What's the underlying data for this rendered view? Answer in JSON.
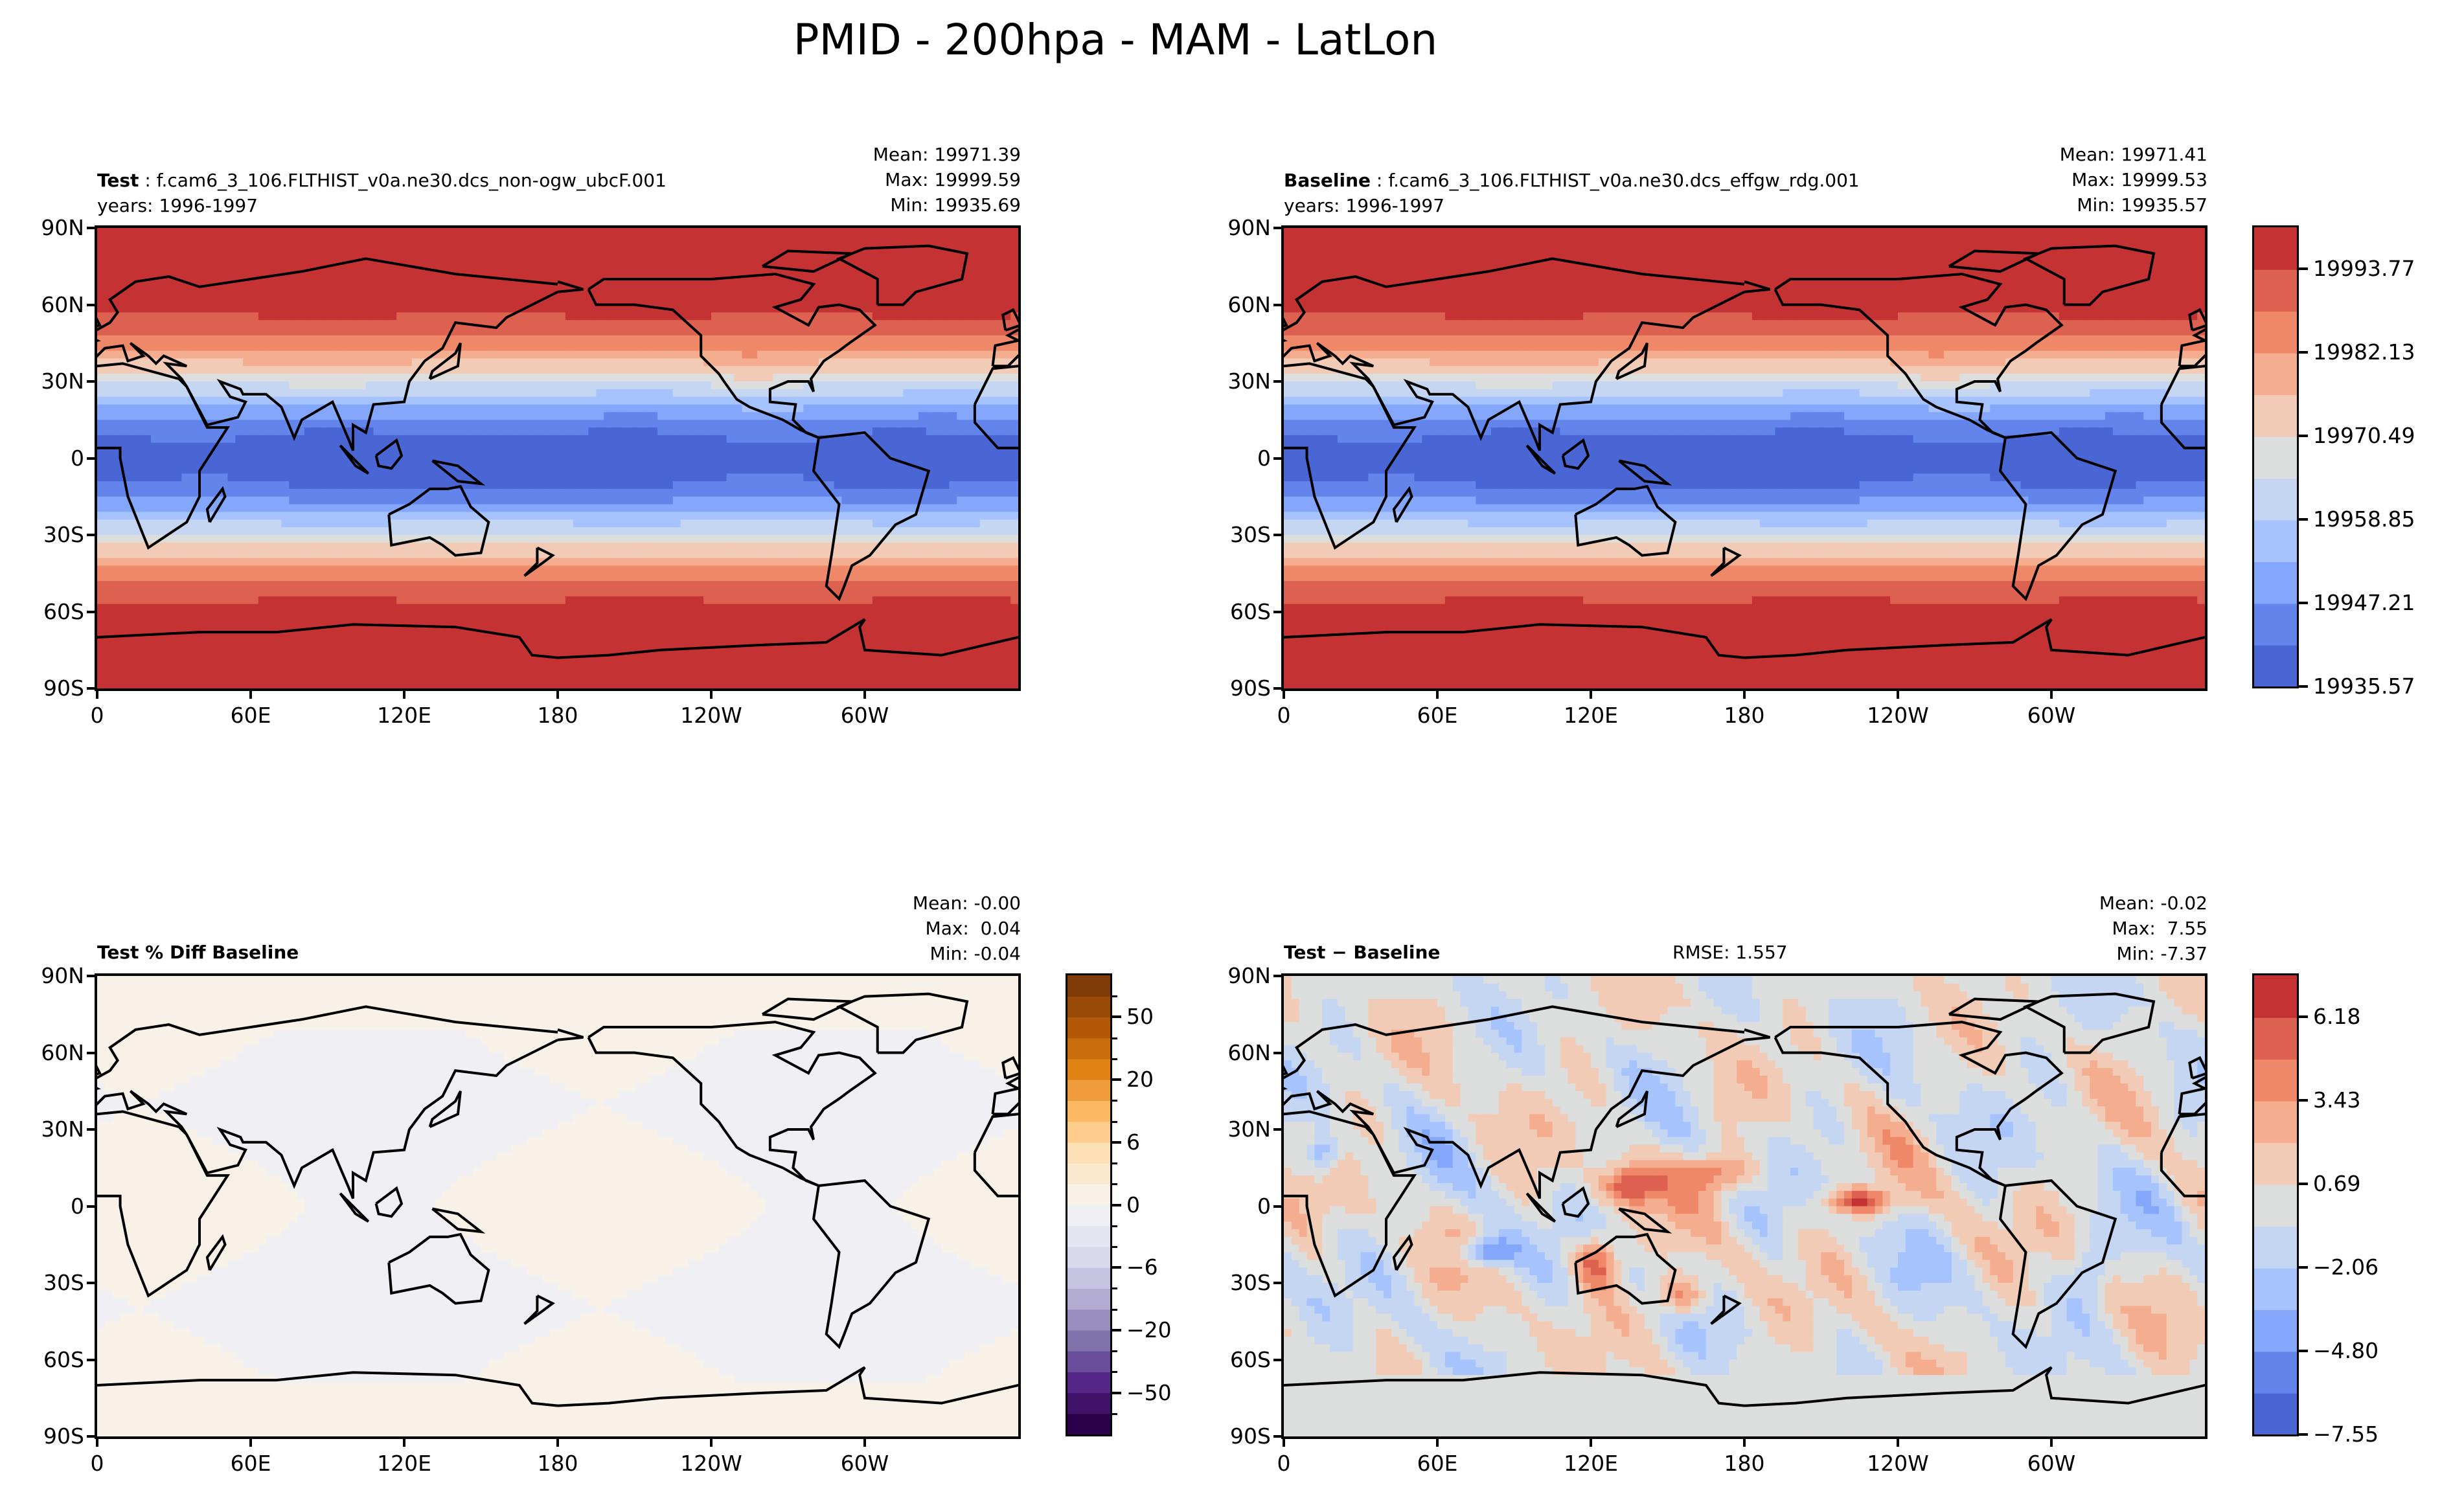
{
  "title": "PMID - 200hpa - MAM - LatLon",
  "axes": {
    "lat_ticks": [
      "90N",
      "60N",
      "30N",
      "0",
      "30S",
      "60S",
      "90S"
    ],
    "lon_ticks": [
      "0",
      "60E",
      "120E",
      "180",
      "120W",
      "60W"
    ]
  },
  "panels": [
    {
      "id": "test",
      "label_bold": "Test",
      "label_rest": " : f.cam6_3_106.FLTHIST_v0a.ne30.dcs_non-ogw_ubcF.001",
      "years": "years: 1996-1997",
      "stats": {
        "mean": "Mean: 19971.39",
        "max": "Max: 19999.59",
        "min": "Min: 19935.69"
      },
      "field": "mean"
    },
    {
      "id": "baseline",
      "label_bold": "Baseline",
      "label_rest": " : f.cam6_3_106.FLTHIST_v0a.ne30.dcs_effgw_rdg.001",
      "years": "years: 1996-1997",
      "stats": {
        "mean": "Mean: 19971.41",
        "max": "Max: 19999.53",
        "min": "Min: 19935.57"
      },
      "field": "mean"
    },
    {
      "id": "pctdiff",
      "label_bold": "Test % Diff Baseline",
      "stats": {
        "mean": "Mean: -0.00",
        "max": "Max:  0.04",
        "min": "Min: -0.04"
      },
      "field": "pct"
    },
    {
      "id": "diff",
      "label_bold": "Test − Baseline",
      "rmse": "RMSE: 1.557",
      "stats": {
        "mean": "Mean: -0.02",
        "max": "Max:  7.55",
        "min": "Min: -7.37"
      },
      "field": "diff"
    }
  ],
  "chart_data": [
    {
      "type": "heatmap",
      "subtype": "lat-lon contour map",
      "panels": [
        "Test",
        "Baseline"
      ],
      "colormap": "coolwarm",
      "colorbar": {
        "levels_min": 19935.57,
        "levels_max": 19999.59,
        "n_bands": 11,
        "tick_labels": [
          "19935.57",
          "19947.21",
          "19958.85",
          "19970.49",
          "19982.13",
          "19993.77"
        ]
      },
      "colors": [
        "#4a66d4",
        "#6384eb",
        "#84a6fb",
        "#a6c3fd",
        "#c5d6f2",
        "#dcdddd",
        "#f2cbb7",
        "#f5ad8f",
        "#ee8869",
        "#dd6150",
        "#c53234"
      ]
    },
    {
      "type": "heatmap",
      "subtype": "lat-lon contour map",
      "panels": [
        "Test % Diff Baseline"
      ],
      "colormap": "PuOr_r",
      "colorbar": {
        "n_bands": 22,
        "tick_labels": [
          "−50",
          "−20",
          "−6",
          "0",
          "6",
          "20",
          "50"
        ]
      },
      "colors_low_mid_high": [
        "#2d004b",
        "#f0f0f4",
        "#f8f1e7",
        "#7f3b08"
      ]
    },
    {
      "type": "heatmap",
      "subtype": "lat-lon contour map",
      "panels": [
        "Test − Baseline"
      ],
      "colormap": "coolwarm",
      "colorbar": {
        "levels_min": -7.55,
        "levels_max": 7.55,
        "n_bands": 11,
        "tick_labels": [
          "−7.55",
          "−4.80",
          "−2.06",
          "0.69",
          "3.43",
          "6.18"
        ]
      },
      "colors": [
        "#4a66d4",
        "#6384eb",
        "#84a6fb",
        "#a6c3fd",
        "#c5d6f2",
        "#dcdddd",
        "#f2cbb7",
        "#f5ad8f",
        "#ee8869",
        "#dd6150",
        "#c53234"
      ]
    }
  ]
}
